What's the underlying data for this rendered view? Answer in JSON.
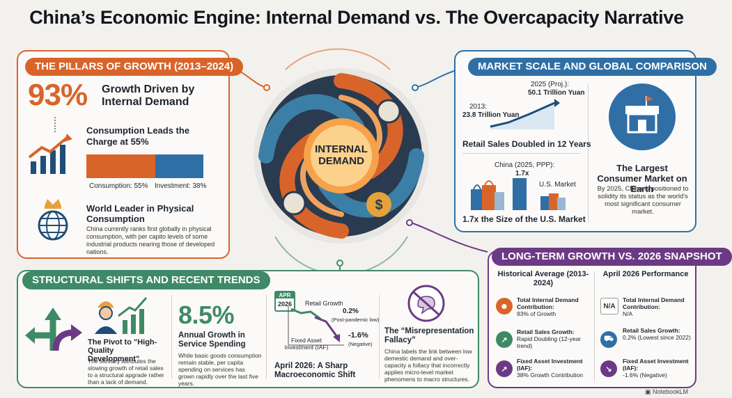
{
  "title": "China’s Economic Engine: Internal Demand vs. The Overcapacity Narrative",
  "colors": {
    "orange": "#d9642a",
    "blue": "#2f6fa5",
    "green": "#3f8a66",
    "purple": "#6c3a84",
    "navy": "#1e4e7a"
  },
  "center": {
    "label_line1": "INTERNAL",
    "label_line2": "DEMAND"
  },
  "pillars": {
    "tag": "THE PILLARS OF GROWTH (2013–2024)",
    "stat": "93%",
    "stat_label": "Growth Driven by Internal Demand",
    "consumption_heading": "Consumption Leads the Charge at 55%",
    "consumption_label": "Consumption: 55%",
    "investment_label": "Investment: 38%",
    "consumption_value": 55,
    "investment_value": 38,
    "leader_heading": "World Leader in Physical Consumption",
    "leader_text": "China currently ranks first globally in physical consumption, with per capito levels of some industrial products nearing those of developed nations."
  },
  "market": {
    "tag": "MARKET SCALE AND GLOBAL COMPARISON",
    "start_label": "2013:",
    "start_value": "23.8 Trillion Yuan",
    "end_label": "2025 (Proj.):",
    "end_value": "50.1 Trillion Yuan",
    "retail_heading": "Retail Sales Doubled in 12 Years",
    "china_label": "China (2025, PPP):",
    "ratio_label": "1.7x",
    "us_label": "U.S. Market",
    "compare_heading": "1.7x the Size of the U.S. Market",
    "largest_heading": "The Largest Consumer Market on Earth",
    "largest_text": "By 2025, China is positioned to solidity its status as the world's most significant consumer market."
  },
  "structural": {
    "tag": "STRUCTURAL SHIFTS AND RECENT TRENDS",
    "pivot_heading": "The Pivot to \"High-Quality Development\"",
    "pivot_text": "The Ministry attributes the slowing growth of retail sales to a structural apgrade rather than a lack of demand.",
    "service_stat": "8.5%",
    "service_heading": "Annual Growth in Service Spending",
    "service_text": "While basic goods consumption remain stable, per capita spending on services has grown rapidly over the last five years.",
    "cal_month": "APR",
    "cal_year": "2026",
    "retail_growth_label": "Retail Growth",
    "retail_growth_value": "0.2%",
    "retail_growth_note": "(Post-pandemic low)",
    "fai_label": "Fixed Asset Investment (IAF)",
    "fai_value": "-1.6%",
    "fai_note": "(Negative)",
    "shift_heading": "April 2026: A Sharp Macroeconomic Shift",
    "fallacy_heading": "The “Misrepresentation Fallacy”",
    "fallacy_text": "China labels the link between low demestic demand and over-capacity a follacy that incorrectly applies micro-level market phenomens to macro structures."
  },
  "longterm": {
    "tag": "LONG-TERM GROWTH VS. 2026 SNAPSHOT",
    "hist_heading": "Historical Average (2013-2024)",
    "snap_heading": "April 2026 Performance",
    "hist_items": [
      {
        "title": "Total Internal Demand Contribution:",
        "value": "93% of Growth"
      },
      {
        "title": "Retail Sales Growth:",
        "value": "Rapid Doubling (12-year trend)"
      },
      {
        "title": "Fixed Asset Investment (IAF):",
        "value": "38% Growth Contribution"
      }
    ],
    "snap_na_badge": "N/A",
    "snap_items": [
      {
        "title": "Total Internal Demand Contribution:",
        "value": "N/A"
      },
      {
        "title": "Retail Sales Growth:",
        "value": "0.2% (Lowest since 2022)"
      },
      {
        "title": "Fixed Asset Investment (IAF):",
        "value": "-1.6% (Negative)"
      }
    ]
  },
  "watermark": "NotebookLM"
}
